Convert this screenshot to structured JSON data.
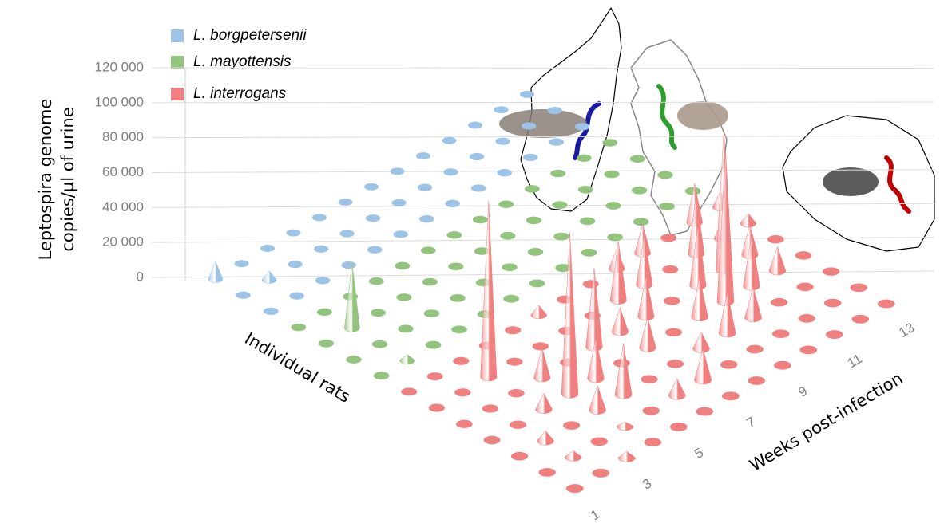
{
  "chart_data": {
    "type": "cone3d",
    "y_label": [
      "Leptospira genome",
      "copies/µl of urine"
    ],
    "row_label": "Individual rats",
    "x_label": "Weeks post-infection",
    "x": [
      1,
      2,
      3,
      4,
      5,
      6,
      7,
      8,
      9,
      10,
      11,
      12,
      13
    ],
    "xticks": [
      1,
      3,
      5,
      7,
      9,
      11,
      13
    ],
    "ylim": [
      0,
      120000
    ],
    "yticks": [
      0,
      {
        "value": 20000,
        "label": "20 000"
      },
      {
        "value": 40000,
        "label": "40 000"
      },
      {
        "value": 60000,
        "label": "60 000"
      },
      {
        "value": 80000,
        "label": "80 000"
      },
      {
        "value": 100000,
        "label": "100 000"
      },
      {
        "value": 120000,
        "label": "120 000"
      }
    ],
    "grid": true,
    "legend": "top-left",
    "series": [
      {
        "name": "L. borgpetersenii",
        "color": "#9dc3e6",
        "values": [
          [
            10000,
            0,
            0,
            0,
            0,
            0,
            0,
            0,
            0,
            0,
            0,
            0,
            0
          ],
          [
            0,
            5000,
            0,
            0,
            0,
            0,
            0,
            0,
            0,
            0,
            0,
            0,
            0
          ],
          [
            0,
            0,
            0,
            0,
            0,
            0,
            0,
            0,
            0,
            0,
            0,
            0,
            0
          ]
        ]
      },
      {
        "name": "L. mayottensis",
        "color": "#93c47d",
        "values": [
          [
            0,
            0,
            0,
            0,
            0,
            0,
            0,
            0,
            0,
            0,
            0,
            0,
            0
          ],
          [
            0,
            35000,
            0,
            0,
            0,
            0,
            0,
            0,
            0,
            0,
            0,
            0,
            0
          ],
          [
            0,
            0,
            0,
            0,
            0,
            0,
            0,
            0,
            0,
            0,
            0,
            0,
            0
          ],
          [
            0,
            3000,
            0,
            0,
            0,
            0,
            0,
            0,
            0,
            0,
            0,
            0,
            0
          ]
        ]
      },
      {
        "name": "L. interrogans",
        "color": "#f08080",
        "values": [
          [
            0,
            0,
            0,
            0,
            0,
            5000,
            0,
            0,
            10000,
            15000,
            0,
            20000,
            8000
          ],
          [
            0,
            0,
            90000,
            0,
            0,
            0,
            0,
            30000,
            25000,
            0,
            30000,
            10000,
            5000
          ],
          [
            0,
            0,
            0,
            15000,
            0,
            40000,
            12000,
            20000,
            0,
            30000,
            70000,
            15000,
            0
          ],
          [
            0,
            0,
            8000,
            80000,
            20000,
            0,
            15000,
            0,
            20000,
            75000,
            25000,
            12000,
            0
          ],
          [
            0,
            5000,
            0,
            12000,
            25000,
            0,
            0,
            8000,
            20000,
            15000,
            0,
            0,
            0
          ],
          [
            0,
            3000,
            0,
            2000,
            0,
            8000,
            15000,
            0,
            0,
            0,
            0,
            0,
            0
          ],
          [
            0,
            0,
            3000,
            0,
            0,
            0,
            0,
            0,
            0,
            0,
            0,
            0,
            0
          ]
        ]
      }
    ]
  }
}
